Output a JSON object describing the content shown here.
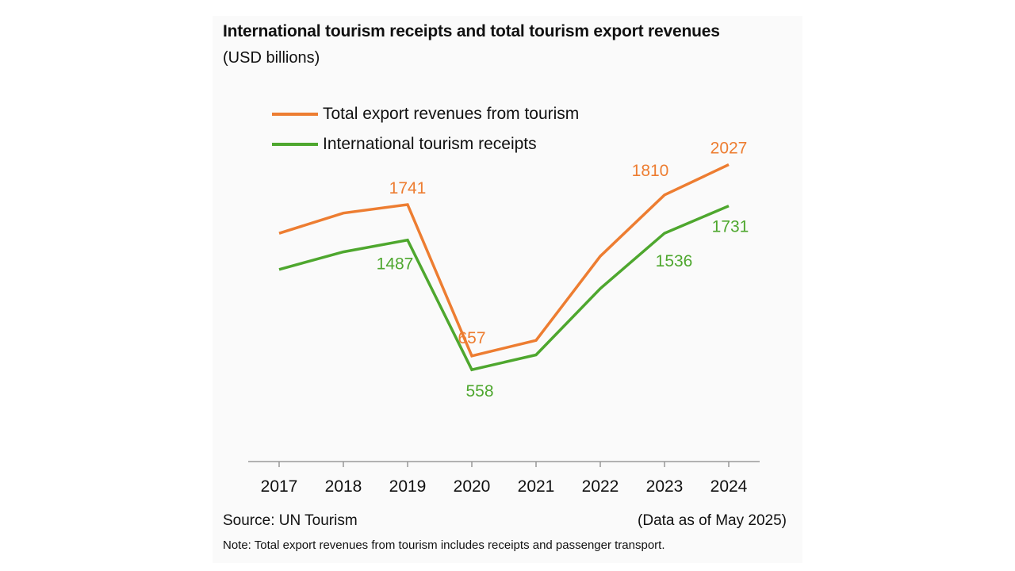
{
  "chart_data": {
    "type": "line",
    "title": "International tourism receipts and total tourism export revenues",
    "subtitle": "(USD billions)",
    "x": [
      "2017",
      "2018",
      "2019",
      "2020",
      "2021",
      "2022",
      "2023",
      "2024"
    ],
    "series": [
      {
        "name": "Total export revenues from tourism",
        "color": "#ED7D31",
        "values": [
          1535,
          1680,
          1741,
          657,
          768,
          1371,
          1810,
          2027
        ],
        "labels": [
          null,
          null,
          "1741",
          "657",
          null,
          null,
          "1810",
          "2027"
        ]
      },
      {
        "name": "International tourism receipts",
        "color": "#4EA72E",
        "values": [
          1276,
          1402,
          1487,
          558,
          664,
          1139,
          1536,
          1731
        ],
        "labels": [
          null,
          null,
          "1487",
          "558",
          null,
          null,
          "1536",
          "1731"
        ]
      }
    ],
    "ylim": [
      -100,
      2400
    ],
    "grid": false,
    "legend_position": "top-left",
    "xlabel": "",
    "ylabel": ""
  },
  "footer": {
    "source": "Source: UN Tourism",
    "as_of": "(Data as of May 2025)",
    "note": "Note: Total export revenues from tourism includes receipts and passenger transport."
  }
}
